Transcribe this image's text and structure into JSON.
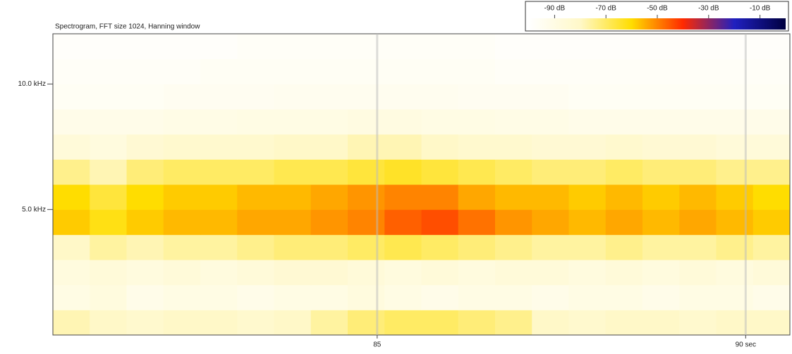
{
  "chart_data": {
    "type": "spectrogram",
    "title": "Spectrogram, FFT size 1024, Hanning window",
    "xlim": [
      80.6,
      90.6
    ],
    "xticks": [
      85,
      {
        "value": 90,
        "label": "90 sec"
      }
    ],
    "ylim": [
      0,
      12
    ],
    "yticks": [
      {
        "value": 5,
        "label": "5.0 kHz"
      },
      {
        "value": 10,
        "label": "10.0 kHz"
      }
    ],
    "grid": true,
    "xbins": [
      80.6,
      81.1,
      81.6,
      82.1,
      82.6,
      83.1,
      83.6,
      84.1,
      84.6,
      85.1,
      85.6,
      86.1,
      86.6,
      87.1,
      87.6,
      88.1,
      88.6,
      89.1,
      89.6,
      90.1,
      90.6
    ],
    "ybins": [
      0,
      1,
      2,
      3,
      4,
      5,
      6,
      7,
      8,
      9,
      10,
      11,
      12
    ],
    "z": [
      [
        -78,
        -80,
        -82,
        -80,
        -80,
        -82,
        -80,
        -76,
        -72,
        -70,
        -70,
        -72,
        -74,
        -80,
        -82,
        -80,
        -80,
        -82,
        -80,
        -80
      ],
      [
        -90,
        -88,
        -92,
        -90,
        -90,
        -92,
        -90,
        -90,
        -88,
        -90,
        -92,
        -90,
        -90,
        -92,
        -90,
        -90,
        -92,
        -90,
        -90,
        -92
      ],
      [
        -88,
        -86,
        -88,
        -86,
        -88,
        -86,
        -84,
        -84,
        -86,
        -88,
        -86,
        -88,
        -86,
        -86,
        -88,
        -86,
        -88,
        -86,
        -88,
        -86
      ],
      [
        -80,
        -76,
        -78,
        -76,
        -76,
        -74,
        -72,
        -72,
        -70,
        -68,
        -70,
        -72,
        -74,
        -76,
        -76,
        -74,
        -76,
        -76,
        -74,
        -76
      ],
      [
        -58,
        -62,
        -58,
        -56,
        -56,
        -54,
        -54,
        -52,
        -50,
        -46,
        -44,
        -48,
        -52,
        -54,
        -56,
        -54,
        -56,
        -54,
        -56,
        -58
      ],
      [
        -60,
        -66,
        -60,
        -58,
        -58,
        -56,
        -56,
        -54,
        -52,
        -50,
        -50,
        -54,
        -56,
        -56,
        -58,
        -56,
        -58,
        -56,
        -58,
        -60
      ],
      [
        -74,
        -78,
        -72,
        -70,
        -70,
        -70,
        -68,
        -68,
        -66,
        -64,
        -66,
        -68,
        -70,
        -72,
        -72,
        -70,
        -72,
        -72,
        -74,
        -74
      ],
      [
        -86,
        -88,
        -84,
        -82,
        -82,
        -82,
        -80,
        -80,
        -78,
        -78,
        -80,
        -82,
        -82,
        -84,
        -84,
        -82,
        -84,
        -84,
        -86,
        -86
      ],
      [
        -92,
        -92,
        -92,
        -91,
        -91,
        -90,
        -90,
        -90,
        -89,
        -89,
        -90,
        -90,
        -91,
        -91,
        -92,
        -92,
        -92,
        -92,
        -92,
        -92
      ],
      [
        -96,
        -96,
        -96,
        -95,
        -95,
        -95,
        -94,
        -94,
        -94,
        -94,
        -94,
        -95,
        -95,
        -95,
        -96,
        -96,
        -96,
        -96,
        -96,
        -96
      ],
      [
        -97,
        -97,
        -97,
        -97,
        -96,
        -96,
        -96,
        -96,
        -96,
        -96,
        -96,
        -96,
        -97,
        -97,
        -97,
        -97,
        -97,
        -97,
        -97,
        -97
      ],
      [
        -98,
        -98,
        -98,
        -98,
        -98,
        -97,
        -97,
        -97,
        -97,
        -97,
        -97,
        -97,
        -98,
        -98,
        -98,
        -98,
        -98,
        -98,
        -98,
        -98
      ]
    ],
    "colorbar_lim": [
      -100,
      0
    ],
    "colorbar_ticks": [
      {
        "value": -90,
        "label": "-90 dB"
      },
      {
        "value": -70,
        "label": "-70 dB"
      },
      {
        "value": -50,
        "label": "-50 dB"
      },
      {
        "value": -30,
        "label": "-30 dB"
      },
      {
        "value": -10,
        "label": "-10 dB"
      }
    ],
    "colormap": [
      "#ffffff",
      "#fff8c8",
      "#ffdd00",
      "#ff2a00",
      "#2020c0",
      "#000040"
    ]
  }
}
